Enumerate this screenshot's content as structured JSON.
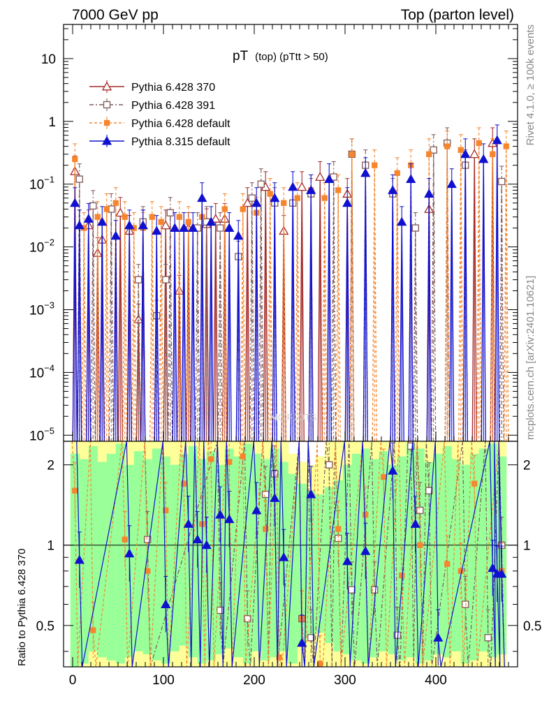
{
  "header": {
    "left": "7000 GeV pp",
    "right": "Top (parton level)"
  },
  "side_labels": {
    "rivet": "Rivet 4.1.0, ≥ 100k events",
    "mcplots": "mcplots.cern.ch [arXiv:2401.10621]"
  },
  "watermark": "MC PLOTS",
  "colors": {
    "pythia6_370": "#a52a2a",
    "pythia6_391": "#7f5858",
    "pythia6_default": "#f5862e",
    "pythia8_default": "#1010d0",
    "band_outer": "#ffff99",
    "band_inner": "#99ff99"
  },
  "chart_data": [
    {
      "type": "line",
      "panel": "main",
      "title": "pT",
      "title_sub": "(top) (pTtt > 50)",
      "xlabel": "",
      "ylabel": "",
      "yscale": "log",
      "xlim": [
        -10,
        490
      ],
      "ylim": [
        8e-06,
        35
      ],
      "x_ticks": [
        0,
        100,
        200,
        300,
        400
      ],
      "y_ticks": [
        {
          "value": 10,
          "base": "10",
          "exp": ""
        },
        {
          "value": 1,
          "base": "1",
          "exp": ""
        },
        {
          "value": 0.1,
          "base": "10",
          "exp": "−1"
        },
        {
          "value": 0.01,
          "base": "10",
          "exp": "−2"
        },
        {
          "value": 0.001,
          "base": "10",
          "exp": "−3"
        },
        {
          "value": 0.0001,
          "base": "10",
          "exp": "−4"
        },
        {
          "value": 1e-05,
          "base": "10",
          "exp": "−5"
        }
      ],
      "legend": [
        {
          "label": "Pythia 6.428 370",
          "series": "pythia6_370"
        },
        {
          "label": "Pythia 6.428 391",
          "series": "pythia6_391"
        },
        {
          "label": "Pythia 6.428 default",
          "series": "pythia6_default"
        },
        {
          "label": "Pythia 8.315 default",
          "series": "pythia8_default"
        }
      ],
      "series": [
        {
          "name": "Pythia 6.428 370",
          "key": "pythia6_370",
          "marker": "triangle-open",
          "x": [
            2.5,
            17.5,
            27.5,
            32.5,
            52.5,
            62.5,
            72.5,
            77.5,
            102.5,
            117.5,
            127.5,
            147.5,
            157.5,
            167.5,
            192.5,
            212.5,
            232.5,
            252.5,
            272.5,
            302.5,
            392.5,
            442.5,
            462.5
          ],
          "y": [
            0.16,
            0.022,
            0.008,
            0.013,
            0.035,
            0.018,
            0.0007,
            0.022,
            0.022,
            0.002,
            0.02,
            0.023,
            0.028,
            0.028,
            0.05,
            0.09,
            0.018,
            0.09,
            0.13,
            0.07,
            0.04,
            0.3,
            0.45
          ]
        },
        {
          "name": "Pythia 6.428 391",
          "key": "pythia6_391",
          "marker": "square-open",
          "x": [
            7.5,
            22.5,
            42.5,
            72.5,
            77.5,
            92.5,
            102.5,
            107.5,
            137.5,
            147.5,
            162.5,
            182.5,
            197.5,
            207.5,
            222.5,
            242.5,
            262.5,
            287.5,
            307.5,
            322.5,
            352.5,
            377.5,
            397.5,
            412.5,
            432.5,
            472.5
          ],
          "y": [
            0.12,
            0.045,
            0.04,
            0.003,
            0.025,
            0.0008,
            0.003,
            0.035,
            0.02,
            0.025,
            0.02,
            0.007,
            0.06,
            0.1,
            0.05,
            0.05,
            0.07,
            0.13,
            0.3,
            0.2,
            0.07,
            0.02,
            0.35,
            0.45,
            0.2,
            0.11
          ]
        },
        {
          "name": "Pythia 6.428 default",
          "key": "pythia6_default",
          "marker": "square-filled",
          "x": [
            2.5,
            12.5,
            27.5,
            37.5,
            47.5,
            57.5,
            67.5,
            77.5,
            87.5,
            97.5,
            117.5,
            127.5,
            142.5,
            167.5,
            187.5,
            202.5,
            217.5,
            232.5,
            247.5,
            262.5,
            277.5,
            292.5,
            307.5,
            332.5,
            357.5,
            372.5,
            392.5,
            412.5,
            427.5,
            447.5,
            462.5,
            477.5
          ],
          "y": [
            0.25,
            0.02,
            0.03,
            0.04,
            0.05,
            0.03,
            0.02,
            0.02,
            0.03,
            0.025,
            0.03,
            0.025,
            0.03,
            0.04,
            0.04,
            0.035,
            0.07,
            0.05,
            0.06,
            0.08,
            0.06,
            0.08,
            0.3,
            0.2,
            0.15,
            0.2,
            0.3,
            0.4,
            0.35,
            0.45,
            0.3,
            0.4
          ]
        },
        {
          "name": "Pythia 8.315 default",
          "key": "pythia8_default",
          "marker": "triangle-filled",
          "x": [
            2.5,
            7.5,
            17.5,
            32.5,
            47.5,
            62.5,
            77.5,
            92.5,
            112.5,
            122.5,
            132.5,
            142.5,
            152.5,
            172.5,
            182.5,
            202.5,
            222.5,
            242.5,
            262.5,
            282.5,
            302.5,
            322.5,
            352.5,
            362.5,
            372.5,
            392.5,
            417.5,
            432.5,
            452.5,
            467.5
          ],
          "y": [
            0.05,
            0.022,
            0.028,
            0.025,
            0.015,
            0.022,
            0.022,
            0.018,
            0.02,
            0.02,
            0.02,
            0.06,
            0.025,
            0.02,
            0.015,
            0.05,
            0.06,
            0.09,
            0.08,
            0.12,
            0.05,
            0.15,
            0.08,
            0.025,
            0.12,
            0.07,
            0.1,
            0.3,
            0.25,
            0.5
          ]
        }
      ]
    },
    {
      "type": "line",
      "panel": "ratio",
      "ylabel": "Ratio to Pythia 6.428 370",
      "yscale": "log",
      "xlim": [
        -10,
        490
      ],
      "ylim": [
        0.35,
        2.45
      ],
      "x_ticks": [
        0,
        100,
        200,
        300,
        400
      ],
      "y_ticks": [
        0.5,
        1,
        2
      ],
      "reference": 1,
      "band_x": [
        2.5,
        12.5,
        22.5,
        32.5,
        42.5,
        52.5,
        62.5,
        72.5,
        82.5,
        92.5,
        102.5,
        112.5,
        122.5,
        132.5,
        142.5,
        152.5,
        162.5,
        172.5,
        182.5,
        192.5,
        202.5,
        212.5,
        222.5,
        232.5,
        242.5,
        252.5,
        262.5,
        272.5,
        282.5,
        292.5,
        302.5,
        312.5,
        322.5,
        332.5,
        342.5,
        352.5,
        362.5,
        372.5,
        382.5,
        392.5,
        402.5,
        412.5,
        422.5,
        432.5,
        442.5,
        452.5,
        462.5,
        472.5
      ],
      "band_inner_lo": [
        0.35,
        0.36,
        0.4,
        0.38,
        0.37,
        0.36,
        0.38,
        0.4,
        0.39,
        0.37,
        0.36,
        0.4,
        0.42,
        0.38,
        0.36,
        0.37,
        0.39,
        0.41,
        0.38,
        0.36,
        0.4,
        0.37,
        0.38,
        0.4,
        0.36,
        0.42,
        0.45,
        0.47,
        0.43,
        0.4,
        0.39,
        0.37,
        0.36,
        0.38,
        0.4,
        0.39,
        0.37,
        0.38,
        0.36,
        0.37,
        0.39,
        0.38,
        0.4,
        0.36,
        0.37,
        0.4,
        0.38,
        0.39
      ],
      "band_inner_hi": [
        2.2,
        2.1,
        2.35,
        2.05,
        2.2,
        2.4,
        2.0,
        2.25,
        2.1,
        2.3,
        2.15,
        2.0,
        2.2,
        2.35,
        2.1,
        2.25,
        2.0,
        2.3,
        2.15,
        2.4,
        2.2,
        2.1,
        2.3,
        2.05,
        1.85,
        1.7,
        1.6,
        1.55,
        1.65,
        1.75,
        2.0,
        2.2,
        2.3,
        2.1,
        2.25,
        2.0,
        2.15,
        2.4,
        2.3,
        2.05,
        2.2,
        2.35,
        2.1,
        2.0,
        2.2,
        2.3,
        2.4,
        2.15
      ],
      "band_outer_lo": [
        0.35,
        0.35,
        0.35,
        0.35,
        0.35,
        0.35,
        0.35,
        0.35,
        0.35,
        0.35,
        0.35,
        0.35,
        0.35,
        0.35,
        0.35,
        0.35,
        0.35,
        0.35,
        0.35,
        0.35,
        0.35,
        0.35,
        0.35,
        0.35,
        0.35,
        0.35,
        0.35,
        0.35,
        0.35,
        0.35,
        0.35,
        0.35,
        0.35,
        0.35,
        0.35,
        0.35,
        0.35,
        0.35,
        0.35,
        0.35,
        0.35,
        0.35,
        0.35,
        0.35,
        0.35,
        0.35,
        0.35,
        0.35
      ],
      "band_outer_hi": [
        2.45,
        2.45,
        2.45,
        2.45,
        2.45,
        2.45,
        2.45,
        2.45,
        2.45,
        2.45,
        2.45,
        2.45,
        2.45,
        2.45,
        2.45,
        2.45,
        2.45,
        2.45,
        2.45,
        2.45,
        2.45,
        2.45,
        2.45,
        2.45,
        2.2,
        2.05,
        2.0,
        2.15,
        2.45,
        2.45,
        2.45,
        2.45,
        2.45,
        2.45,
        2.45,
        2.45,
        2.45,
        2.45,
        2.45,
        2.45,
        2.45,
        2.45,
        2.45,
        2.45,
        2.45,
        2.45,
        2.45,
        2.45
      ],
      "series": [
        {
          "name": "Pythia 6.428 391",
          "key": "pythia6_391",
          "marker": "square-open",
          "x": [
            82.5,
            162.5,
            192.5,
            212.5,
            222.5,
            252.5,
            262.5,
            282.5,
            292.5,
            307.5,
            332.5,
            357.5,
            372.5,
            382.5,
            392.5,
            432.5,
            457.5,
            472.5
          ],
          "y": [
            1.05,
            0.57,
            0.53,
            1.55,
            1.85,
            0.53,
            0.45,
            2.0,
            1.06,
            0.68,
            0.68,
            0.46,
            2.35,
            1.35,
            1.6,
            0.6,
            0.45,
            1.0
          ]
        },
        {
          "name": "Pythia 6.428 default",
          "key": "pythia6_default",
          "marker": "square-filled",
          "x": [
            2.5,
            22.5,
            57.5,
            82.5,
            102.5,
            122.5,
            142.5,
            152.5,
            172.5,
            187.5,
            212.5,
            227.5,
            252.5,
            272.5,
            292.5,
            322.5,
            342.5,
            362.5,
            382.5,
            412.5,
            427.5,
            442.5,
            472.5
          ],
          "y": [
            1.6,
            0.48,
            1.05,
            0.8,
            1.35,
            1.7,
            1.2,
            2.1,
            2.05,
            2.15,
            1.15,
            0.38,
            0.53,
            0.36,
            1.15,
            1.3,
            1.8,
            0.77,
            1.0,
            0.85,
            0.8,
            1.7,
            0.8
          ]
        },
        {
          "name": "Pythia 8.315 default",
          "key": "pythia8_default",
          "marker": "triangle-filled",
          "x": [
            7.5,
            62.5,
            102.5,
            127.5,
            137.5,
            147.5,
            162.5,
            172.5,
            202.5,
            222.5,
            232.5,
            252.5,
            262.5,
            302.5,
            322.5,
            352.5,
            377.5,
            402.5,
            462.5,
            467.5,
            472.5
          ],
          "y": [
            0.88,
            0.93,
            0.6,
            1.2,
            1.05,
            1.0,
            1.3,
            1.25,
            1.35,
            1.5,
            0.9,
            0.43,
            1.55,
            0.87,
            0.95,
            1.9,
            1.2,
            0.45,
            0.82,
            0.78,
            0.78
          ]
        }
      ]
    }
  ]
}
